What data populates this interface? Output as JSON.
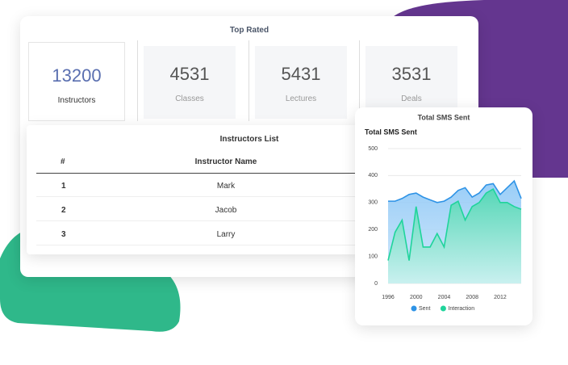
{
  "top_rated": {
    "title": "Top Rated",
    "stats": [
      {
        "value": 13200,
        "label": "Instructors"
      },
      {
        "value": 4531,
        "label": "Classes"
      },
      {
        "value": 5431,
        "label": "Lectures"
      },
      {
        "value": 3531,
        "label": "Deals"
      }
    ]
  },
  "instructors_list": {
    "title": "Instructors List",
    "columns": [
      "#",
      "Instructor Name"
    ],
    "rows": [
      [
        1,
        "Mark"
      ],
      [
        2,
        "Jacob"
      ],
      [
        3,
        "Larry"
      ]
    ]
  },
  "sms_card": {
    "title": "Total SMS Sent"
  },
  "chart_data": {
    "type": "area",
    "title": "Total SMS Sent",
    "x": [
      1996,
      1997,
      1998,
      1999,
      2000,
      2001,
      2002,
      2003,
      2004,
      2005,
      2006,
      2007,
      2008,
      2009,
      2010,
      2011,
      2012,
      2013,
      2014,
      2015
    ],
    "xlim": [
      1996,
      2015
    ],
    "xticks": [
      1996,
      2000,
      2004,
      2008,
      2012
    ],
    "ylim": [
      0,
      500
    ],
    "yticks": [
      0,
      100,
      200,
      300,
      400,
      500
    ],
    "grid": true,
    "series": [
      {
        "name": "Sent",
        "color": "#2e93e6",
        "values": [
          305,
          305,
          315,
          330,
          335,
          320,
          310,
          300,
          305,
          320,
          345,
          355,
          320,
          335,
          365,
          370,
          330,
          355,
          380,
          315
        ]
      },
      {
        "name": "Interaction",
        "color": "#1fd49b",
        "values": [
          85,
          190,
          235,
          85,
          285,
          135,
          135,
          185,
          135,
          290,
          305,
          235,
          285,
          300,
          335,
          350,
          300,
          300,
          285,
          275
        ]
      }
    ]
  }
}
